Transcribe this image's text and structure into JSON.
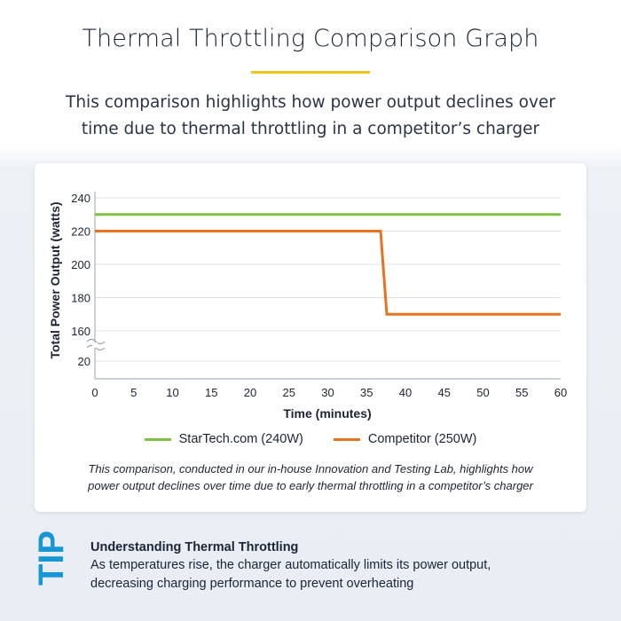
{
  "header": {
    "title": "Thermal Throttling Comparison Graph",
    "subtitle_line1": "This comparison highlights how power output declines over",
    "subtitle_line2": "time due to thermal throttling in a competitor’s charger"
  },
  "colors": {
    "accent_rule": "#f2c318",
    "startech": "#7dc242",
    "competitor": "#e8731f",
    "tip_blue": "#1597d5"
  },
  "chart_data": {
    "type": "line",
    "title": "",
    "xlabel": "Time (minutes)",
    "ylabel": "Total Power Output (watts)",
    "xlim": [
      0,
      60
    ],
    "x_ticks": [
      "0",
      "5",
      "10",
      "15",
      "20",
      "25",
      "30",
      "35",
      "40",
      "45",
      "50",
      "55",
      "60"
    ],
    "y_ticks": [
      "240",
      "220",
      "200",
      "180",
      "160",
      "20"
    ],
    "y_axis_break": true,
    "grid": true,
    "legend_placement": "bottom-center",
    "series": [
      {
        "name": "StarTech.com (240W)",
        "color": "#7dc242",
        "x": [
          0,
          60
        ],
        "y": [
          230,
          230
        ]
      },
      {
        "name": "Competitor (250W)",
        "color": "#e8731f",
        "x": [
          0,
          36.8,
          37.6,
          60
        ],
        "y": [
          220,
          220,
          170,
          170
        ]
      }
    ]
  },
  "note": {
    "line1": "This comparison, conducted in our in-house Innovation and Testing Lab, highlights how",
    "line2": "power output declines over time due to early thermal throttling in a competitor’s charger"
  },
  "tip": {
    "label": "TIP",
    "heading": "Understanding Thermal Throttling",
    "body_line1": "As temperatures rise, the charger automatically limits its power output,",
    "body_line2": "decreasing charging performance to prevent overheating"
  }
}
